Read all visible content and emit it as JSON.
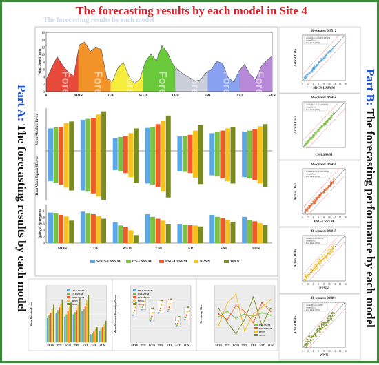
{
  "title": "The forecasting results by each model in Site 4",
  "watermark": "The forecasting results by each model",
  "part_a": {
    "part": "Part A:",
    "text": "The forecasting results by each model"
  },
  "part_b": {
    "part": "Part B:",
    "text": "The forecasting performance by each model"
  },
  "days": [
    "MON",
    "TUE",
    "WED",
    "THU",
    "FRI",
    "SAT",
    "SUN"
  ],
  "day_watermarks": [
    "Forecasting Result on Monday",
    "Forecasting Result on Tuesday",
    "Forecasting Result on Wednesday",
    "Forecasting Result on Thursday",
    "Forecasting Result on Friday",
    "Forecasting Result on Saturday",
    "Forecasting Result on Sunday"
  ],
  "day_colors": [
    "#e53a2a",
    "#f08a16",
    "#f4ea2a",
    "#5dc42a",
    "#c6cad8",
    "#7f99f0",
    "#b27fd6"
  ],
  "models": [
    "SDCS-LSSVM",
    "CS-LSSVM",
    "PSO-LSSVM",
    "BPNN",
    "WNN"
  ],
  "model_colors": [
    "#5aa9e6",
    "#7dc142",
    "#f05a24",
    "#f6c21b",
    "#7a8c1f"
  ],
  "chart_data": [
    {
      "type": "area",
      "ylabel": "Wind Speed (m/s)",
      "ylim": [
        0,
        16
      ],
      "yticks": [
        0,
        2,
        4,
        6,
        8,
        10,
        12,
        14,
        16
      ],
      "xticks": [
        0,
        "MON",
        "TUE",
        "WED",
        "THU",
        "FRI",
        "SAT",
        "SUN"
      ],
      "series": [
        {
          "values": [
            3.2,
            6.5,
            9.4,
            7.1,
            5.3,
            4.2,
            12.6,
            13.4,
            10.8,
            12.1,
            11.4,
            3.6,
            2.7,
            6.3,
            7.9,
            4.2,
            2.2,
            3.4,
            8.1,
            10.2,
            8.3,
            12.4,
            10.6,
            7.3,
            5.8,
            4.6,
            3.8,
            2.9,
            3.2,
            5.1,
            6.1,
            8.2,
            7.6,
            3.9,
            2.6,
            5.6,
            7.4,
            4.6,
            3.2,
            6.8,
            8.4,
            9.6
          ]
        }
      ]
    },
    {
      "type": "bar",
      "ylabel": "Mean Absolute Error",
      "ylim": [
        0,
        1
      ],
      "categories": [
        "MON",
        "TUE",
        "WED",
        "THU",
        "FRI",
        "SAT",
        "SUN"
      ],
      "series": [
        {
          "name": "SDCS-LSSVM",
          "values": [
            0.42,
            0.58,
            0.24,
            0.43,
            0.27,
            0.33,
            0.36
          ]
        },
        {
          "name": "CS-LSSVM",
          "values": [
            0.44,
            0.6,
            0.26,
            0.45,
            0.28,
            0.35,
            0.38
          ]
        },
        {
          "name": "PSO-LSSVM",
          "values": [
            0.45,
            0.62,
            0.28,
            0.5,
            0.3,
            0.38,
            0.4
          ]
        },
        {
          "name": "BPNN",
          "values": [
            0.52,
            0.68,
            0.33,
            0.56,
            0.38,
            0.42,
            0.46
          ]
        },
        {
          "name": "WNN",
          "values": [
            0.55,
            0.74,
            0.42,
            0.66,
            0.48,
            0.45,
            0.5
          ]
        }
      ]
    },
    {
      "type": "bar",
      "ylabel": "Root Mean Squared Error",
      "ylim": [
        0,
        1
      ],
      "categories": [
        "MON",
        "TUE",
        "WED",
        "THU",
        "FRI",
        "SAT",
        "SUN"
      ],
      "series": [
        {
          "name": "SDCS-LSSVM",
          "values": [
            0.52,
            0.68,
            0.33,
            0.56,
            0.35,
            0.42,
            0.45
          ]
        },
        {
          "name": "CS-LSSVM",
          "values": [
            0.55,
            0.7,
            0.35,
            0.58,
            0.36,
            0.44,
            0.47
          ]
        },
        {
          "name": "PSO-LSSVM",
          "values": [
            0.58,
            0.73,
            0.38,
            0.62,
            0.38,
            0.47,
            0.5
          ]
        },
        {
          "name": "BPNN",
          "values": [
            0.63,
            0.78,
            0.45,
            0.7,
            0.46,
            0.52,
            0.56
          ]
        },
        {
          "name": "WNN",
          "values": [
            0.68,
            0.84,
            0.55,
            0.8,
            0.57,
            0.56,
            0.62
          ]
        }
      ]
    },
    {
      "type": "bar",
      "ylabel": "Index of Agreement",
      "ylim": [
        0,
        1.2
      ],
      "yticks": [
        0,
        0.2,
        0.4,
        0.6,
        0.8,
        1
      ],
      "categories": [
        "MON",
        "TUE",
        "WED",
        "THU",
        "FRI",
        "SAT",
        "SUN"
      ],
      "series": [
        {
          "name": "SDCS-LSSVM",
          "values": [
            0.95,
            0.98,
            0.65,
            0.9,
            0.6,
            0.88,
            0.82
          ]
        },
        {
          "name": "CS-LSSVM",
          "values": [
            0.92,
            0.92,
            0.55,
            0.82,
            0.58,
            0.82,
            0.72
          ]
        },
        {
          "name": "PSO-LSSVM",
          "values": [
            0.88,
            0.9,
            0.5,
            0.76,
            0.56,
            0.78,
            0.68
          ]
        },
        {
          "name": "BPNN",
          "values": [
            0.83,
            0.84,
            0.4,
            0.7,
            0.55,
            0.72,
            0.62
          ]
        },
        {
          "name": "WNN",
          "values": [
            0.7,
            0.76,
            0.25,
            0.6,
            0.52,
            0.66,
            0.56
          ]
        }
      ]
    },
    {
      "type": "bar",
      "ylabel": "Mean Relative Error",
      "legend": "top-center",
      "categories": [
        "MON",
        "TUE",
        "WED",
        "THU",
        "FRI",
        "SAT",
        "SUN"
      ],
      "series": [
        {
          "name": "SDCS-LSSVM",
          "values": [
            0.45,
            0.55,
            0.48,
            0.52,
            0.58,
            0.15,
            0.22
          ]
        },
        {
          "name": "CS-LSSVM",
          "values": [
            0.5,
            0.6,
            0.52,
            0.56,
            0.62,
            0.17,
            0.25
          ]
        },
        {
          "name": "PSO-LSSVM",
          "values": [
            0.55,
            0.65,
            0.58,
            0.6,
            0.68,
            0.2,
            0.28
          ]
        },
        {
          "name": "BPNN",
          "values": [
            0.62,
            0.72,
            0.66,
            0.7,
            0.78,
            0.24,
            0.33
          ]
        },
        {
          "name": "WNN",
          "values": [
            0.7,
            0.8,
            0.74,
            0.82,
            0.88,
            0.28,
            0.4
          ]
        }
      ]
    },
    {
      "type": "scatter",
      "ylabel": "Mean Absolute Percentage Error",
      "legend": "top-left",
      "categories": [
        "MON",
        "TUE",
        "WED",
        "THU",
        "FRI",
        "SAT",
        "SUN"
      ],
      "series": [
        {
          "name": "SDCS-LSSVM",
          "values": [
            0.48,
            0.58,
            0.38,
            0.52,
            0.55,
            0.28,
            0.4
          ]
        },
        {
          "name": "CS-LSSVM",
          "values": [
            0.52,
            0.62,
            0.42,
            0.56,
            0.58,
            0.3,
            0.44
          ]
        },
        {
          "name": "PSO-LSSVM",
          "values": [
            0.56,
            0.66,
            0.46,
            0.6,
            0.62,
            0.33,
            0.48
          ]
        },
        {
          "name": "BPNN",
          "values": [
            0.62,
            0.72,
            0.52,
            0.66,
            0.68,
            0.38,
            0.54
          ]
        },
        {
          "name": "WNN",
          "values": [
            0.7,
            0.8,
            0.6,
            0.74,
            0.76,
            0.45,
            0.62
          ]
        }
      ]
    },
    {
      "type": "line",
      "ylabel": "Percentage Rise",
      "legend": "bottom-right",
      "categories": [
        "MON",
        "TUE",
        "WED",
        "THU",
        "FRI",
        "SAT",
        "SUN"
      ],
      "series": [
        {
          "name": "CS-LSSVM",
          "values": [
            0.45,
            0.55,
            0.42,
            0.5,
            0.46,
            0.52,
            0.48
          ]
        },
        {
          "name": "PSO-LSSVM",
          "values": [
            0.5,
            0.4,
            0.65,
            0.55,
            0.35,
            0.7,
            0.55
          ]
        },
        {
          "name": "BPNN",
          "values": [
            0.3,
            0.7,
            0.85,
            0.2,
            0.5,
            0.62,
            0.75
          ]
        },
        {
          "name": "WNN",
          "values": [
            0.6,
            0.35,
            0.15,
            0.4,
            0.8,
            0.3,
            0.6
          ]
        }
      ]
    },
    {
      "type": "scatter",
      "title": "R-square: 0.9512",
      "xlabel": "SDCS-LSSVM",
      "ylabel": "Actual Data",
      "legend": [
        "Actual Data vs. SDCS-LSSVM",
        "Actual Data",
        "Pred bands (95%)"
      ],
      "xlim": [
        0,
        16
      ],
      "ylim": [
        0,
        16
      ],
      "xticks": [
        0,
        2,
        4,
        6,
        8,
        10,
        12,
        14,
        16
      ]
    },
    {
      "type": "scatter",
      "title": "R-square: 0.9454",
      "xlabel": "CS-LSSVM",
      "ylabel": "Actual Data",
      "legend": [
        "Actual Data vs. CS-LSSVM",
        "Actual Data",
        "Pred bands (95%)"
      ],
      "xlim": [
        0,
        16
      ],
      "ylim": [
        0,
        16
      ]
    },
    {
      "type": "scatter",
      "title": "R-square: 0.9456",
      "xlabel": "PSO-LSSVM",
      "ylabel": "Actual Data",
      "legend": [
        "Actual Data vs. PSO-LSSVM",
        "Actual Data",
        "Pred bands (95%)"
      ],
      "xlim": [
        0,
        16
      ],
      "ylim": [
        0,
        16
      ],
      "xticks": [
        0,
        2,
        4,
        6,
        8,
        10,
        12,
        14,
        16
      ]
    },
    {
      "type": "scatter",
      "title": "R-square: 0.9045",
      "xlabel": "BPNN",
      "ylabel": "Actual Data",
      "legend": [
        "Actual Data vs. BPNN",
        "Actual Data",
        "Pred bands (95%)"
      ],
      "xlim": [
        0,
        16
      ],
      "ylim": [
        0,
        16
      ],
      "xticks": [
        0,
        2,
        4,
        6,
        8,
        10,
        12,
        14,
        16
      ]
    },
    {
      "type": "scatter",
      "title": "R-square: 0.8894",
      "xlabel": "WNN",
      "ylabel": "Actual Data",
      "legend": [
        "Actual Data vs. WNN",
        "Actual Data",
        "Pred bands (95%)"
      ],
      "xlim": [
        0,
        16
      ],
      "ylim": [
        0,
        16
      ],
      "xticks": [
        0,
        2,
        4,
        6,
        8,
        10,
        12,
        14,
        16
      ]
    }
  ]
}
